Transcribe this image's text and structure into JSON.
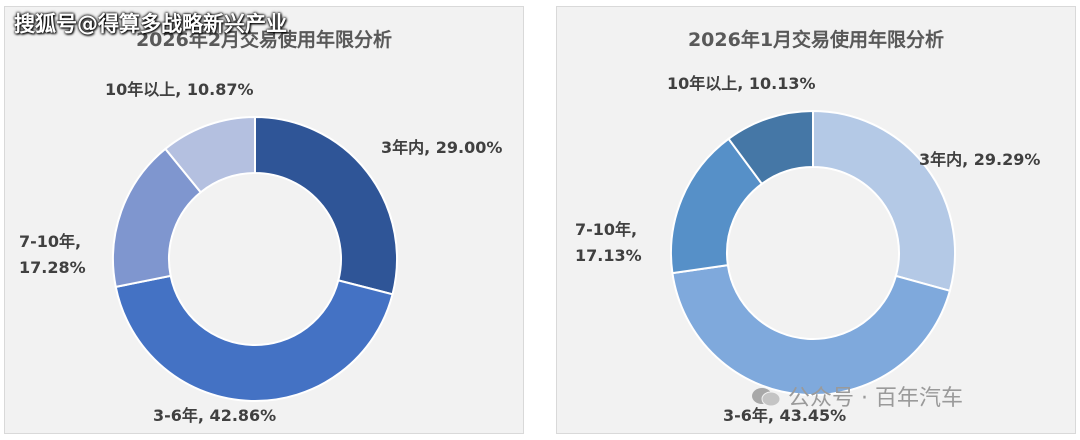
{
  "overlay_text": "搜狐号@得算多战略新兴产业",
  "watermark": {
    "text": "公众号 · 百年汽车",
    "icon": "wechat-icon"
  },
  "chart_data": [
    {
      "type": "pie",
      "title": "2026年2月交易使用年限分析",
      "donut": true,
      "categories": [
        "3年内",
        "3-6年",
        "7-10年",
        "10年以上"
      ],
      "values": [
        29.0,
        42.86,
        17.28,
        10.87
      ],
      "labels": [
        "3年内, 29.00%",
        "3-6年, 42.86%",
        "7-10年,\n17.28%",
        "10年以上, 10.87%"
      ],
      "colors": [
        "#2f5597",
        "#4472c4",
        "#7f96cf",
        "#b4c0e0"
      ]
    },
    {
      "type": "pie",
      "title": "2026年1月交易使用年限分析",
      "donut": true,
      "categories": [
        "3年内",
        "3-6年",
        "7-10年",
        "10年以上"
      ],
      "values": [
        29.29,
        43.45,
        17.13,
        10.13
      ],
      "labels": [
        "3年内, 29.29%",
        "3-6年, 43.45%",
        "7-10年,\n17.13%",
        "10年以上, 10.13%"
      ],
      "colors": [
        "#b4c9e6",
        "#7fa9dc",
        "#5690c8",
        "#4577a6"
      ]
    }
  ]
}
